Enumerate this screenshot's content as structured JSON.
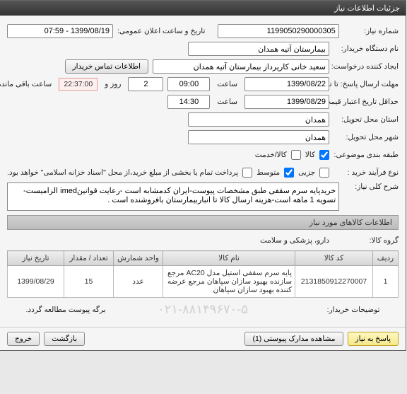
{
  "window": {
    "title": "جزئیات اطلاعات نیاز"
  },
  "form": {
    "need_no_label": "شماره نیاز:",
    "need_no": "1199050290000305",
    "pub_datetime_label": "تاریخ و ساعت اعلان عمومی:",
    "pub_datetime": "1399/08/19 - 07:59",
    "buyer_device_label": "نام دستگاه خریدار:",
    "buyer_device": "بیمارستان آتیه همدان",
    "creator_label": "ایجاد کننده درخواست:",
    "creator": "سعید خانی کارپرداز بیمارستان آتیه همدان",
    "contact_btn": "اطلاعات تماس خریدار",
    "deadline_label": "مهلت ارسال پاسخ: تا تاریخ:",
    "deadline_date": "1399/08/22",
    "time_label": "ساعت",
    "deadline_time": "09:00",
    "day_count": "2",
    "day_and": "روز و",
    "remaining_time": "22:37:00",
    "remaining_label": "ساعت باقی مانده",
    "validity_label": "حداقل تاریخ اعتبار قیمت: تا تاریخ:",
    "validity_date": "1399/08/29",
    "validity_time": "14:30",
    "province_label": "استان محل تحویل:",
    "province": "همدان",
    "city_label": "شهر محل تحویل:",
    "city": "همدان",
    "budget_label": "طبقه بندی موضوعی:",
    "cb_goods": "کالا",
    "cb_service": "کالا/خدمت",
    "proc_type_label": "نوع فرآیند خرید :",
    "cb_small": "جزیی",
    "cb_medium": "متوسط",
    "pay_note": "پرداخت تمام یا بخشی از مبلغ خرید،از محل \"اسناد خزانه اسلامی\" خواهد بود.",
    "desc_label": "شرح کلی نیاز:",
    "desc": "خریدپایه سرم سقفی طبق مشخصات پیوست-ایران کدمشابه است -رعایت قوانینimed الزامیست-تسویه 1 ماهه است-هزینه ارسال کالا تا انباربیمارستان بافروشنده است .",
    "items_header": "اطلاعات کالاهای مورد نیاز",
    "group_label": "گروه کالا:",
    "group": "دارو، پزشکی و سلامت",
    "buyer_notes_label": "توضیحات خریدار:",
    "buyer_notes": "برگه پیوست مطالعه گردد.",
    "watermark": "۰۲۱-۸۸۱۴۹۶۷۰-۵"
  },
  "table": {
    "headers": {
      "row": "ردیف",
      "code": "کد کالا",
      "name": "نام کالا",
      "unit": "واحد شمارش",
      "qty": "تعداد / مقدار",
      "date": "تاریخ نیاز"
    },
    "rows": [
      {
        "row": "1",
        "code": "2131850912270007",
        "name": "پایه سرم سقفی استیل مدل AC20 مرجع سازنده بهبود سازان سپاهان مرجع عرضه کننده بهبود سازان سپاهان",
        "unit": "عدد",
        "qty": "15",
        "date": "1399/08/29"
      }
    ]
  },
  "actions": {
    "reply": "پاسخ به نیاز",
    "view_attach": "مشاهده مدارک پیوستی (1)",
    "back": "بازگشت",
    "exit": "خروج"
  }
}
